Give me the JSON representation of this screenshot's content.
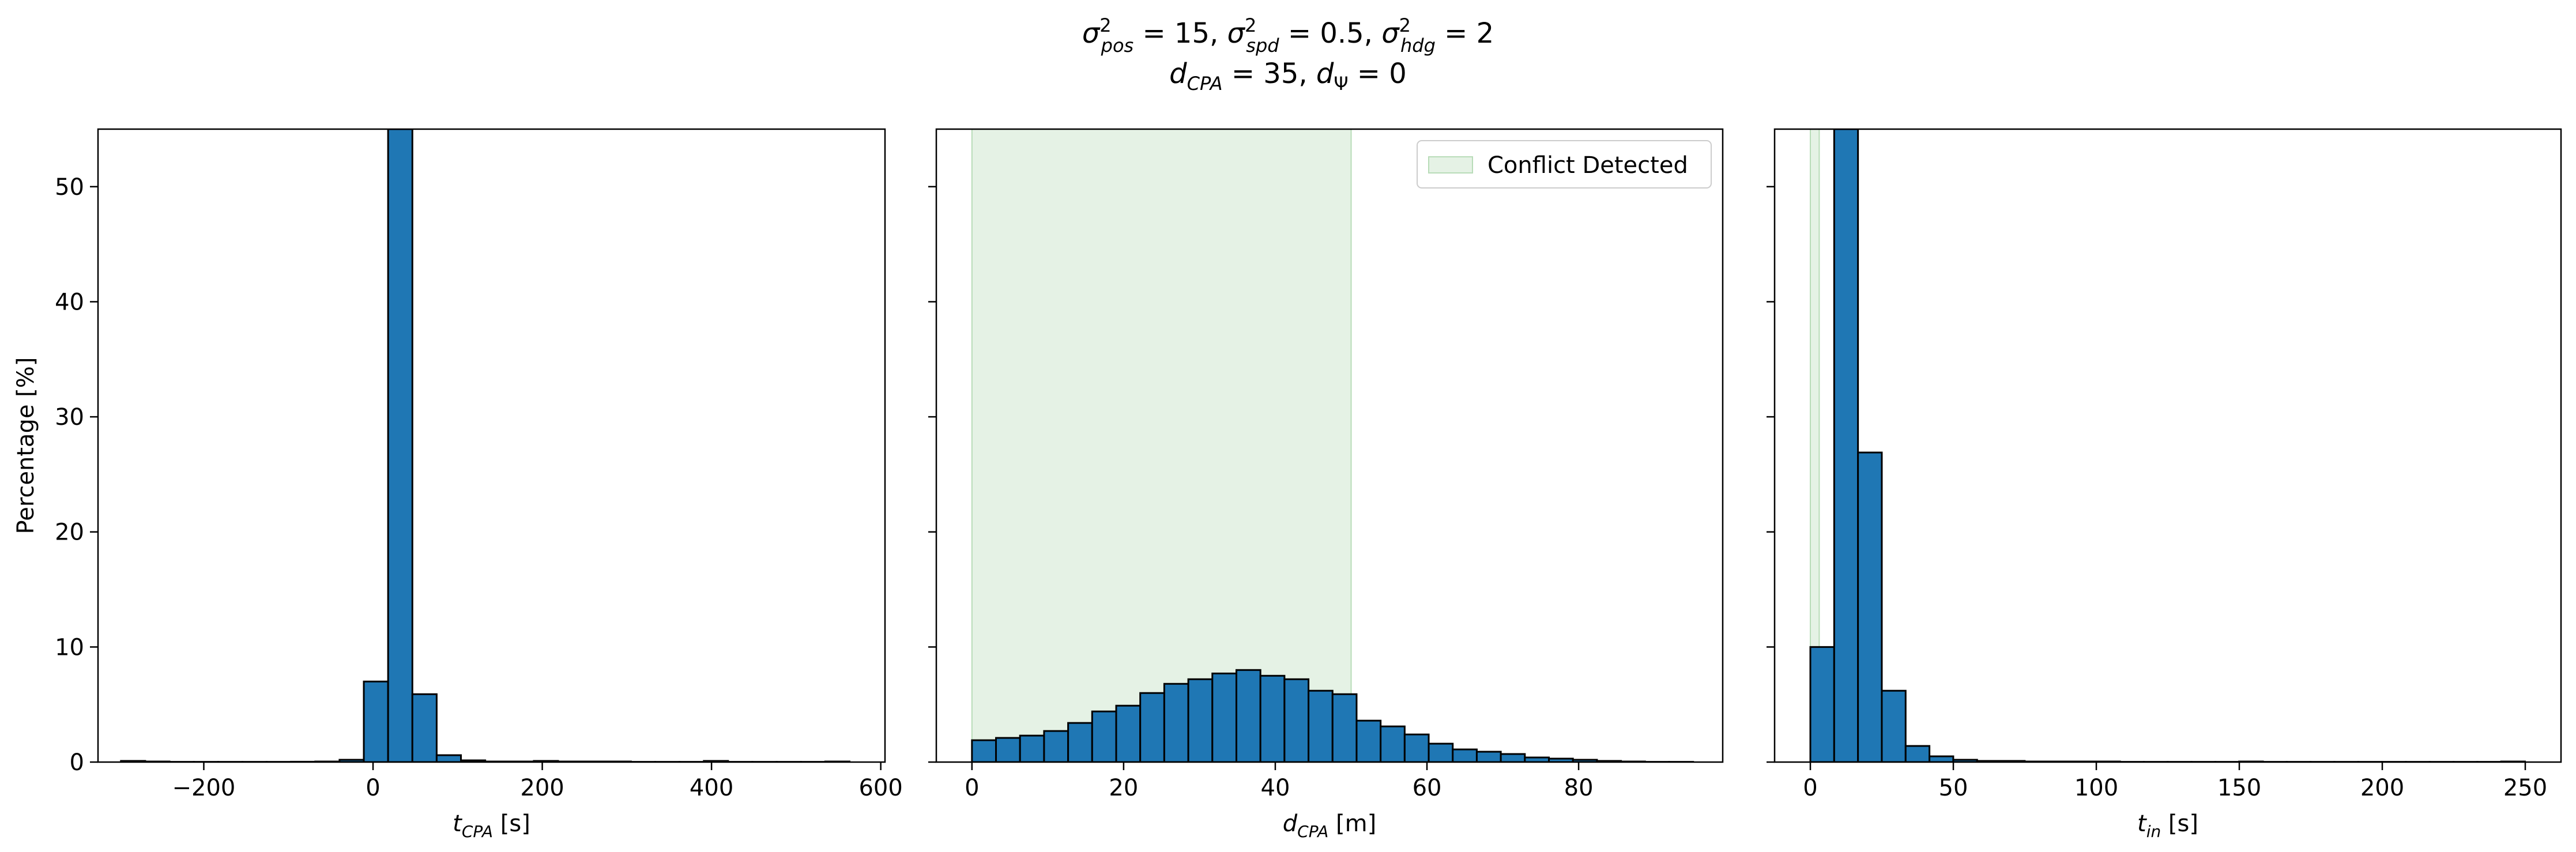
{
  "figure": {
    "title_line1": "σ²pos = 15, σ²spd = 0.5, σ²hdg = 2",
    "title_line2": "dCPA = 35, dΨ = 0"
  },
  "colors": {
    "bar_fill": "#1f77b4",
    "bar_edge": "#000000",
    "conflict_region": "#cfe8cf"
  },
  "chart_data": [
    {
      "type": "bar",
      "name": "tCPA histogram",
      "xlabel_main": "t",
      "xlabel_sub": "CPA",
      "xlabel_unit": "[s]",
      "ylabel": "Percentage [%]",
      "xlim": [
        -325,
        605
      ],
      "ylim": [
        0,
        55
      ],
      "xticks": [
        -200,
        0,
        200,
        400,
        600
      ],
      "yticks": [
        0,
        10,
        20,
        30,
        40,
        50
      ],
      "bin_width": 28.7,
      "bins": [
        [
          -297.9,
          0.1
        ],
        [
          -269.2,
          0.05
        ],
        [
          -240.5,
          0.02
        ],
        [
          -211.8,
          0.02
        ],
        [
          -183.1,
          0.02
        ],
        [
          -154.4,
          0.02
        ],
        [
          -125.7,
          0.02
        ],
        [
          -97.0,
          0.03
        ],
        [
          -68.3,
          0.05
        ],
        [
          -39.6,
          0.2
        ],
        [
          -10.9,
          7.0
        ],
        [
          17.8,
          55.0
        ],
        [
          46.5,
          5.9
        ],
        [
          75.2,
          0.6
        ],
        [
          103.9,
          0.15
        ],
        [
          132.6,
          0.05
        ],
        [
          161.3,
          0.05
        ],
        [
          190.0,
          0.1
        ],
        [
          218.7,
          0.05
        ],
        [
          247.4,
          0.05
        ],
        [
          276.1,
          0.05
        ],
        [
          304.8,
          0.02
        ],
        [
          333.5,
          0.02
        ],
        [
          362.2,
          0.02
        ],
        [
          390.9,
          0.1
        ],
        [
          419.6,
          0.02
        ],
        [
          448.3,
          0.02
        ],
        [
          477.0,
          0.02
        ],
        [
          505.7,
          0.02
        ],
        [
          534.4,
          0.05
        ]
      ]
    },
    {
      "type": "bar",
      "name": "dCPA histogram",
      "xlabel_main": "d",
      "xlabel_sub": "CPA",
      "xlabel_unit": "[m]",
      "xlim": [
        -4.7,
        99.0
      ],
      "ylim": [
        0,
        55
      ],
      "xticks": [
        0,
        20,
        40,
        60,
        80
      ],
      "yticks": [
        0,
        10,
        20,
        30,
        40,
        50
      ],
      "shaded_region": {
        "x": [
          0,
          50
        ],
        "label": "Conflict Detected"
      },
      "legend_position": "top-right",
      "bin_width": 3.17,
      "bins": [
        [
          0.0,
          1.9
        ],
        [
          3.17,
          2.1
        ],
        [
          6.34,
          2.3
        ],
        [
          9.51,
          2.7
        ],
        [
          12.68,
          3.4
        ],
        [
          15.85,
          4.4
        ],
        [
          19.02,
          4.9
        ],
        [
          22.19,
          6.0
        ],
        [
          25.36,
          6.8
        ],
        [
          28.53,
          7.2
        ],
        [
          31.7,
          7.7
        ],
        [
          34.87,
          8.0
        ],
        [
          38.04,
          7.5
        ],
        [
          41.21,
          7.2
        ],
        [
          44.38,
          6.2
        ],
        [
          47.55,
          5.9
        ],
        [
          50.72,
          3.6
        ],
        [
          53.89,
          3.1
        ],
        [
          57.06,
          2.4
        ],
        [
          60.23,
          1.6
        ],
        [
          63.4,
          1.1
        ],
        [
          66.57,
          0.9
        ],
        [
          69.74,
          0.7
        ],
        [
          72.91,
          0.4
        ],
        [
          76.08,
          0.3
        ],
        [
          79.25,
          0.2
        ],
        [
          82.42,
          0.1
        ],
        [
          85.59,
          0.05
        ],
        [
          88.76,
          0.02
        ],
        [
          91.93,
          0.02
        ]
      ]
    },
    {
      "type": "bar",
      "name": "tin histogram",
      "xlabel_main": "t",
      "xlabel_sub": "in",
      "xlabel_unit": "[s]",
      "xlim": [
        -12.5,
        262.5
      ],
      "ylim": [
        0,
        55
      ],
      "xticks": [
        0,
        50,
        100,
        150,
        200,
        250
      ],
      "yticks": [
        0,
        10,
        20,
        30,
        40,
        50
      ],
      "shaded_region": {
        "x": [
          0,
          3.1
        ]
      },
      "bin_width": 8.33,
      "bins": [
        [
          0.0,
          10.0
        ],
        [
          8.33,
          55.0
        ],
        [
          16.66,
          26.9
        ],
        [
          24.99,
          6.2
        ],
        [
          33.32,
          1.4
        ],
        [
          41.65,
          0.5
        ],
        [
          49.98,
          0.2
        ],
        [
          58.31,
          0.1
        ],
        [
          66.64,
          0.1
        ],
        [
          74.97,
          0.05
        ],
        [
          83.3,
          0.05
        ],
        [
          91.63,
          0.05
        ],
        [
          99.96,
          0.05
        ],
        [
          108.29,
          0.02
        ],
        [
          116.62,
          0.02
        ],
        [
          124.95,
          0.02
        ],
        [
          133.28,
          0.02
        ],
        [
          141.61,
          0.02
        ],
        [
          149.94,
          0.05
        ],
        [
          158.27,
          0.02
        ],
        [
          166.6,
          0.02
        ],
        [
          174.93,
          0.02
        ],
        [
          183.26,
          0.02
        ],
        [
          191.59,
          0.02
        ],
        [
          199.92,
          0.02
        ],
        [
          208.25,
          0.02
        ],
        [
          216.58,
          0.02
        ],
        [
          224.91,
          0.02
        ],
        [
          233.24,
          0.02
        ],
        [
          241.57,
          0.05
        ]
      ]
    }
  ]
}
